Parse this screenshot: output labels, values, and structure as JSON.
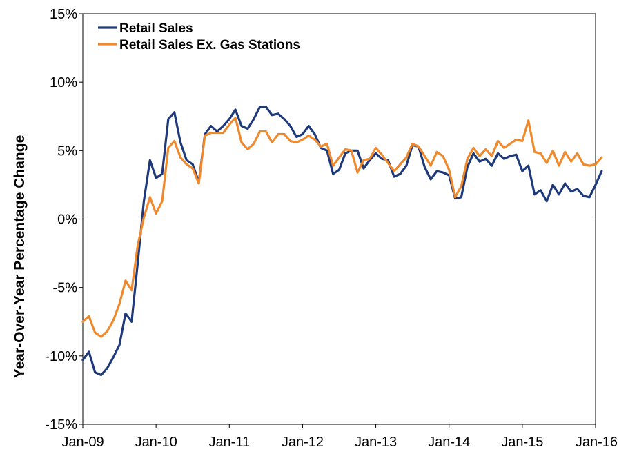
{
  "chart_data": {
    "type": "line",
    "ylabel": "Year-Over-Year  Percentage Change",
    "xlabel": "",
    "ylim": [
      -15,
      15
    ],
    "y_ticks": [
      -15,
      -10,
      -5,
      0,
      5,
      10,
      15
    ],
    "y_tick_labels": [
      "-15%",
      "-10%",
      "-5%",
      "0%",
      "5%",
      "10%",
      "15%"
    ],
    "x_range": [
      "2009-01",
      "2016-01"
    ],
    "x_ticks": [
      "2009-01",
      "2010-01",
      "2011-01",
      "2012-01",
      "2013-01",
      "2014-01",
      "2015-01",
      "2016-01"
    ],
    "x_tick_labels": [
      "Jan-09",
      "Jan-10",
      "Jan-11",
      "Jan-12",
      "Jan-13",
      "Jan-14",
      "Jan-15",
      "Jan-16"
    ],
    "legend_position": "top-left",
    "grid": false,
    "start_month": "2009-01",
    "series": [
      {
        "name": "Retail Sales",
        "color": "#1f3a7a",
        "values": [
          -10.3,
          -9.7,
          -11.2,
          -11.4,
          -10.9,
          -10.1,
          -9.2,
          -6.9,
          -7.5,
          -3.2,
          1.3,
          4.3,
          3.0,
          3.3,
          7.3,
          7.8,
          5.6,
          4.3,
          4.0,
          2.7,
          6.2,
          6.8,
          6.4,
          6.8,
          7.3,
          8.0,
          6.8,
          6.6,
          7.3,
          8.2,
          8.2,
          7.6,
          7.7,
          7.3,
          6.8,
          6.0,
          6.2,
          6.8,
          6.2,
          5.2,
          5.0,
          3.3,
          3.6,
          4.8,
          5.0,
          5.0,
          3.7,
          4.3,
          4.8,
          4.4,
          4.3,
          3.1,
          3.3,
          3.9,
          5.4,
          5.3,
          3.8,
          2.9,
          3.5,
          3.4,
          3.2,
          1.5,
          1.6,
          3.8,
          4.8,
          4.2,
          4.4,
          3.9,
          4.8,
          4.4,
          4.6,
          4.7,
          3.5,
          3.9,
          1.8,
          2.1,
          1.3,
          2.5,
          1.8,
          2.6,
          2.0,
          2.2,
          1.7,
          1.6,
          2.5,
          3.5
        ]
      },
      {
        "name": "Retail Sales Ex. Gas Stations",
        "color": "#f0892b",
        "values": [
          -7.5,
          -7.1,
          -8.3,
          -8.6,
          -8.2,
          -7.4,
          -6.2,
          -4.5,
          -5.2,
          -1.9,
          0.1,
          1.6,
          0.4,
          1.3,
          5.2,
          5.7,
          4.5,
          4.0,
          3.7,
          2.6,
          6.1,
          6.3,
          6.3,
          6.3,
          6.9,
          7.4,
          5.6,
          5.1,
          5.5,
          6.4,
          6.4,
          5.6,
          6.2,
          6.2,
          5.7,
          5.6,
          5.8,
          6.1,
          5.8,
          5.3,
          5.5,
          3.9,
          4.5,
          5.1,
          5.0,
          3.4,
          4.3,
          4.4,
          5.2,
          4.7,
          4.1,
          3.5,
          4.0,
          4.5,
          5.5,
          5.3,
          4.6,
          3.9,
          4.9,
          4.6,
          3.6,
          1.6,
          2.4,
          4.4,
          5.2,
          4.6,
          5.1,
          4.6,
          5.7,
          5.2,
          5.5,
          5.8,
          5.7,
          7.2,
          4.9,
          4.8,
          4.1,
          5.0,
          3.9,
          4.9,
          4.2,
          4.8,
          4.0,
          3.9,
          4.0,
          4.5
        ]
      }
    ]
  }
}
